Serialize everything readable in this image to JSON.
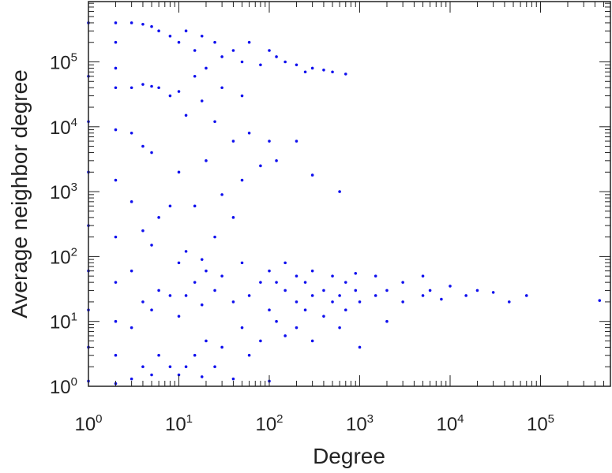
{
  "chart_data": {
    "type": "scatter",
    "title": "",
    "xlabel": "Degree",
    "ylabel": "Average neighbor degree",
    "xscale": "log",
    "yscale": "log",
    "xlim": [
      1,
      700000
    ],
    "ylim": [
      1,
      500000
    ],
    "grid": false,
    "legend": "none",
    "x_ticks": [
      {
        "value": 1,
        "base": "10",
        "exp": "0"
      },
      {
        "value": 10,
        "base": "10",
        "exp": "1"
      },
      {
        "value": 100,
        "base": "10",
        "exp": "2"
      },
      {
        "value": 1000,
        "base": "10",
        "exp": "3"
      },
      {
        "value": 10000,
        "base": "10",
        "exp": "4"
      },
      {
        "value": 100000,
        "base": "10",
        "exp": "5"
      }
    ],
    "y_ticks": [
      {
        "value": 1,
        "base": "10",
        "exp": "0"
      },
      {
        "value": 10,
        "base": "10",
        "exp": "1"
      },
      {
        "value": 100,
        "base": "10",
        "exp": "2"
      },
      {
        "value": 1000,
        "base": "10",
        "exp": "3"
      },
      {
        "value": 10000,
        "base": "10",
        "exp": "4"
      },
      {
        "value": 100000,
        "base": "10",
        "exp": "5"
      }
    ],
    "series": [
      {
        "color": "#1010ee",
        "points": [
          [
            1,
            1.2
          ],
          [
            1,
            4
          ],
          [
            1,
            15
          ],
          [
            1,
            60
          ],
          [
            1,
            300
          ],
          [
            1,
            2000
          ],
          [
            1,
            12000
          ],
          [
            1,
            60000
          ],
          [
            1,
            400000
          ],
          [
            2,
            1.1
          ],
          [
            2,
            3
          ],
          [
            2,
            10
          ],
          [
            2,
            40
          ],
          [
            2,
            200
          ],
          [
            2,
            1500
          ],
          [
            2,
            9000
          ],
          [
            2,
            40000
          ],
          [
            2,
            80000
          ],
          [
            2,
            200000
          ],
          [
            2,
            400000
          ],
          [
            3,
            1.3
          ],
          [
            3,
            8
          ],
          [
            3,
            60
          ],
          [
            3,
            700
          ],
          [
            3,
            8000
          ],
          [
            3,
            40000
          ],
          [
            3,
            400000
          ],
          [
            4,
            2
          ],
          [
            4,
            20
          ],
          [
            4,
            250
          ],
          [
            4,
            5000
          ],
          [
            4,
            45000
          ],
          [
            4,
            380000
          ],
          [
            5,
            1.5
          ],
          [
            5,
            15
          ],
          [
            5,
            150
          ],
          [
            5,
            4000
          ],
          [
            5,
            42000
          ],
          [
            5,
            350000
          ],
          [
            6,
            3
          ],
          [
            6,
            30
          ],
          [
            6,
            400
          ],
          [
            6,
            40000
          ],
          [
            6,
            300000
          ],
          [
            8,
            2
          ],
          [
            8,
            25
          ],
          [
            8,
            600
          ],
          [
            8,
            30000
          ],
          [
            8,
            250000
          ],
          [
            10,
            1.5
          ],
          [
            10,
            12
          ],
          [
            10,
            80
          ],
          [
            10,
            2000
          ],
          [
            10,
            35000
          ],
          [
            10,
            200000
          ],
          [
            12,
            2
          ],
          [
            12,
            25
          ],
          [
            12,
            120
          ],
          [
            12,
            15000
          ],
          [
            12,
            300000
          ],
          [
            15,
            3
          ],
          [
            15,
            40
          ],
          [
            15,
            600
          ],
          [
            15,
            60000
          ],
          [
            15,
            150000
          ],
          [
            18,
            1.4
          ],
          [
            18,
            18
          ],
          [
            18,
            90
          ],
          [
            18,
            25000
          ],
          [
            18,
            250000
          ],
          [
            20,
            5
          ],
          [
            20,
            60
          ],
          [
            20,
            3000
          ],
          [
            20,
            80000
          ],
          [
            25,
            2
          ],
          [
            25,
            30
          ],
          [
            25,
            200
          ],
          [
            25,
            12000
          ],
          [
            25,
            200000
          ],
          [
            30,
            4
          ],
          [
            30,
            50
          ],
          [
            30,
            900
          ],
          [
            30,
            40000
          ],
          [
            30,
            120000
          ],
          [
            40,
            1.3
          ],
          [
            40,
            20
          ],
          [
            40,
            400
          ],
          [
            40,
            6000
          ],
          [
            40,
            150000
          ],
          [
            50,
            8
          ],
          [
            50,
            80
          ],
          [
            50,
            1500
          ],
          [
            50,
            30000
          ],
          [
            50,
            100000
          ],
          [
            60,
            3
          ],
          [
            60,
            25
          ],
          [
            60,
            8000
          ],
          [
            60,
            200000
          ],
          [
            80,
            5
          ],
          [
            80,
            40
          ],
          [
            80,
            2500
          ],
          [
            80,
            90000
          ],
          [
            100,
            1.2
          ],
          [
            100,
            15
          ],
          [
            100,
            60
          ],
          [
            100,
            6000
          ],
          [
            100,
            150000
          ],
          [
            120,
            10
          ],
          [
            120,
            40
          ],
          [
            120,
            3000
          ],
          [
            120,
            120000
          ],
          [
            150,
            6
          ],
          [
            150,
            30
          ],
          [
            150,
            80
          ],
          [
            150,
            100000
          ],
          [
            200,
            8
          ],
          [
            200,
            20
          ],
          [
            200,
            50
          ],
          [
            200,
            6000
          ],
          [
            200,
            90000
          ],
          [
            250,
            15
          ],
          [
            250,
            40
          ],
          [
            250,
            70000
          ],
          [
            300,
            5
          ],
          [
            300,
            25
          ],
          [
            300,
            60
          ],
          [
            300,
            1800
          ],
          [
            300,
            80000
          ],
          [
            400,
            12
          ],
          [
            400,
            30
          ],
          [
            400,
            75000
          ],
          [
            500,
            20
          ],
          [
            500,
            50
          ],
          [
            500,
            70000
          ],
          [
            600,
            8
          ],
          [
            600,
            25
          ],
          [
            600,
            1000
          ],
          [
            700,
            15
          ],
          [
            700,
            40
          ],
          [
            700,
            65000
          ],
          [
            900,
            30
          ],
          [
            900,
            55
          ],
          [
            1000,
            4
          ],
          [
            1000,
            20
          ],
          [
            1500,
            25
          ],
          [
            1500,
            50
          ],
          [
            2000,
            10
          ],
          [
            2000,
            30
          ],
          [
            3000,
            20
          ],
          [
            3000,
            40
          ],
          [
            5000,
            25
          ],
          [
            5000,
            50
          ],
          [
            6000,
            30
          ],
          [
            8000,
            22
          ],
          [
            10000,
            35
          ],
          [
            15000,
            25
          ],
          [
            20000,
            30
          ],
          [
            30000,
            28
          ],
          [
            45000,
            20
          ],
          [
            70000,
            25
          ],
          [
            450000,
            21
          ]
        ]
      }
    ]
  }
}
